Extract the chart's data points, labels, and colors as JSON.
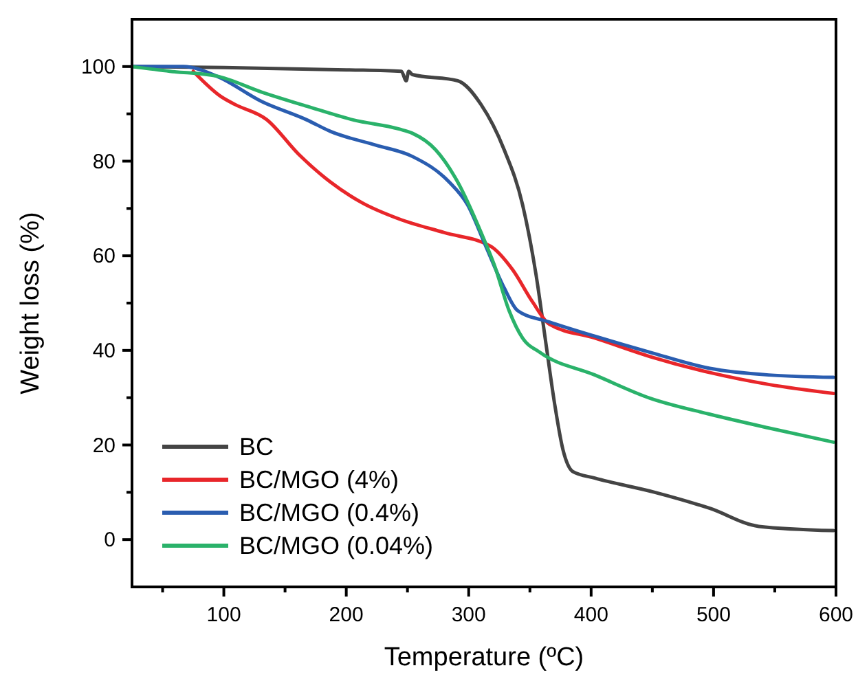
{
  "chart_data": {
    "type": "line",
    "xlabel": "Temperature (ºC)",
    "ylabel": "Weight loss (%)",
    "xlim": [
      25,
      600
    ],
    "ylim": [
      -10,
      110
    ],
    "xticks": [
      {
        "value": 50,
        "label": null
      },
      100,
      {
        "value": 150,
        "label": null
      },
      200,
      {
        "value": 250,
        "label": null
      },
      300,
      {
        "value": 350,
        "label": null
      },
      400,
      {
        "value": 450,
        "label": null
      },
      500,
      {
        "value": 550,
        "label": null
      },
      600
    ],
    "yticks": [
      0,
      {
        "value": 10,
        "label": null
      },
      20,
      {
        "value": 30,
        "label": null
      },
      40,
      {
        "value": 50,
        "label": null
      },
      60,
      {
        "value": 70,
        "label": null
      },
      80,
      {
        "value": 90,
        "label": null
      },
      100
    ],
    "grid": false,
    "legend": "bottom left",
    "line_style": "solid",
    "marker": "none",
    "series": [
      {
        "name": "BC",
        "color": "#444444",
        "x": [
          25,
          100,
          200,
          245,
          249,
          251,
          254,
          291,
          310,
          329,
          344,
          355,
          363,
          370,
          377,
          385,
          403,
          452,
          497,
          537,
          598
        ],
        "values": [
          100,
          99.8,
          99.3,
          99,
          97,
          99,
          98.3,
          97,
          92,
          82.4,
          70.8,
          56,
          41.6,
          29,
          19,
          14.4,
          13,
          10,
          6.6,
          2.8,
          1.9
        ]
      },
      {
        "name": "BC/MGO (4%)",
        "color": "#e8262a",
        "x": [
          75,
          98,
          109,
          135,
          161,
          187,
          213,
          243,
          280,
          318,
          336,
          352,
          366,
          403,
          448,
          497,
          545,
          598
        ],
        "values": [
          99,
          93.6,
          92,
          88.8,
          81.5,
          75.6,
          71.2,
          67.8,
          64.9,
          62,
          57,
          50.3,
          45.5,
          42.6,
          38.7,
          35.3,
          32.8,
          30.9
        ]
      },
      {
        "name": "BC/MGO (0.4%)",
        "color": "#2a5db0",
        "x": [
          25,
          67,
          94,
          131,
          168,
          187,
          224,
          254,
          284,
          299,
          314,
          329,
          340,
          366,
          403,
          448,
          497,
          545,
          598
        ],
        "values": [
          100,
          100,
          98,
          92.6,
          88.7,
          86.3,
          83.4,
          81,
          75.6,
          70.8,
          62,
          53.2,
          48.4,
          46,
          43,
          39.6,
          36.2,
          34.8,
          34.3
        ]
      },
      {
        "name": "BC/MGO (0.04%)",
        "color": "#2ab26a",
        "x": [
          25,
          56,
          94,
          131,
          168,
          206,
          243,
          254,
          273,
          291,
          310,
          321,
          333,
          344,
          358,
          403,
          448,
          497,
          545,
          598
        ],
        "values": [
          100,
          99,
          98,
          94.6,
          91.6,
          88.7,
          86.8,
          85.9,
          82.4,
          75.6,
          65,
          58,
          48.4,
          42.6,
          39.6,
          34.8,
          29.9,
          26.5,
          23.6,
          20.6
        ]
      }
    ]
  }
}
